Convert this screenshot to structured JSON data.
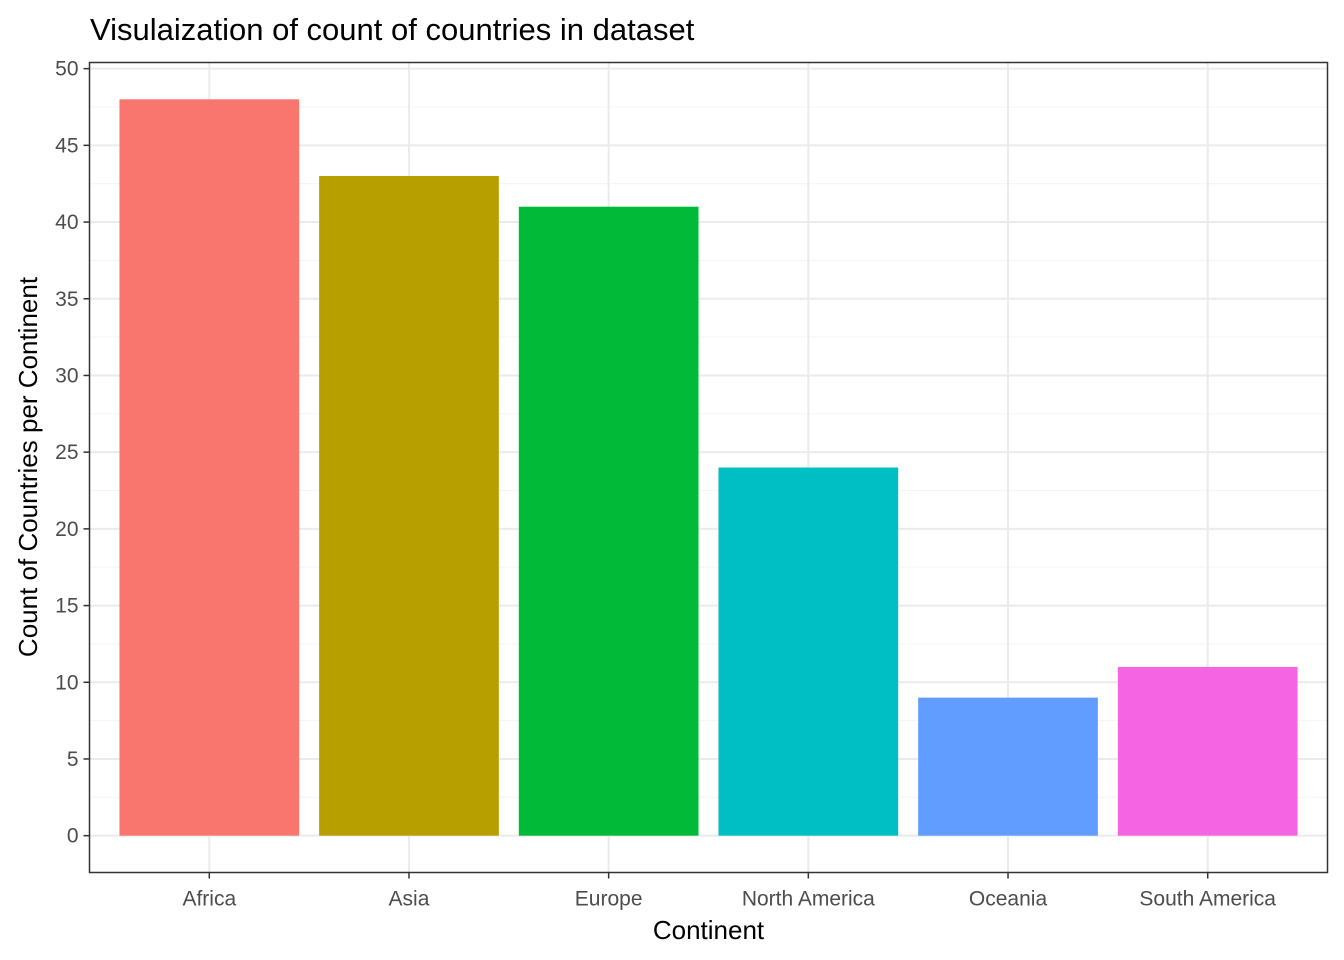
{
  "chart_data": {
    "type": "bar",
    "title": "Visulaization of count of countries in dataset",
    "xlabel": "Continent",
    "ylabel": "Count of Countries per Continent",
    "categories": [
      "Africa",
      "Asia",
      "Europe",
      "North America",
      "Oceania",
      "South America"
    ],
    "values": [
      48,
      43,
      41,
      24,
      9,
      11
    ],
    "colors": [
      "#F8766D",
      "#B79F00",
      "#00BA38",
      "#00BFC4",
      "#619CFF",
      "#F564E3"
    ],
    "ylim": [
      -2.4,
      50.4
    ],
    "yticks": [
      0,
      5,
      10,
      15,
      20,
      25,
      30,
      35,
      40,
      45,
      50
    ],
    "ytick_labels": [
      "0",
      "5",
      "10",
      "15",
      "20",
      "25",
      "30",
      "35",
      "40",
      "45",
      "50"
    ],
    "grid": true,
    "legend": "none",
    "style": {
      "grid_major_color": "#ebebeb",
      "grid_minor_color": "#f5f5f5",
      "panel_border_color": "#333333",
      "tick_color": "#333333",
      "tick_label_color": "#4d4d4d"
    }
  }
}
